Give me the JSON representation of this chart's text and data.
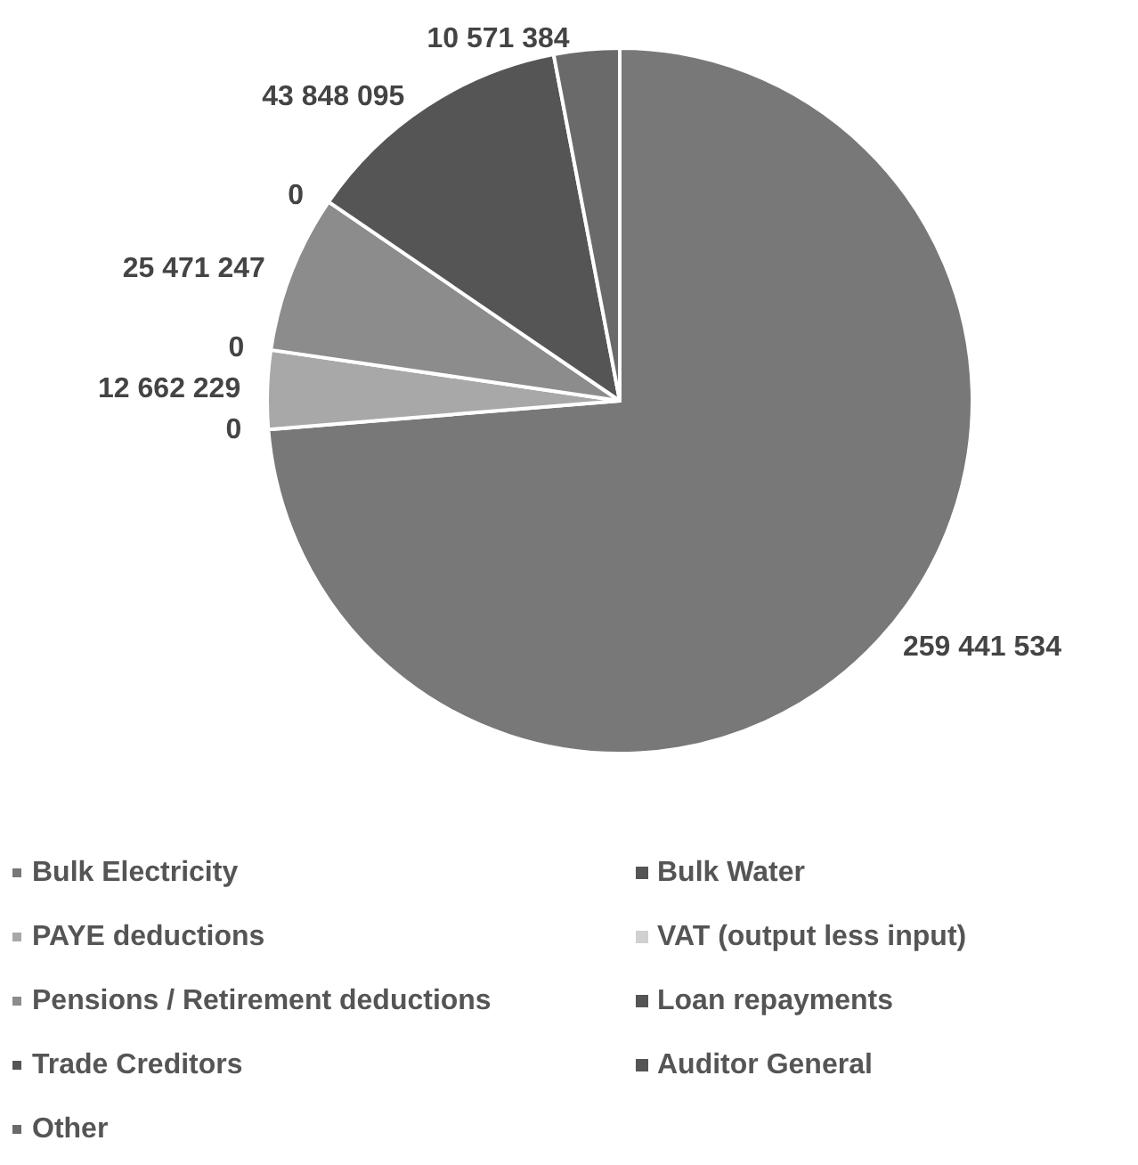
{
  "chart_data": {
    "type": "pie",
    "categories": [
      "Bulk Electricity",
      "Bulk Water",
      "PAYE deductions",
      "VAT (output less input)",
      "Pensions / Retirement deductions",
      "Loan repayments",
      "Trade Creditors",
      "Auditor General",
      "Other"
    ],
    "values": [
      259441534,
      0,
      12662229,
      0,
      25471247,
      0,
      43848095,
      0,
      10571384
    ],
    "value_labels": [
      "259 441 534",
      "0",
      "12 662 229",
      "0",
      "25 471 247",
      "0",
      "43 848 095",
      null,
      "10 571 384"
    ],
    "colors": [
      "#787878",
      "#555555",
      "#a8a8a8",
      "#d0d0d0",
      "#8c8c8c",
      "#555555",
      "#555555",
      "#555555",
      "#6a6a6a"
    ],
    "legend": "bottom"
  }
}
